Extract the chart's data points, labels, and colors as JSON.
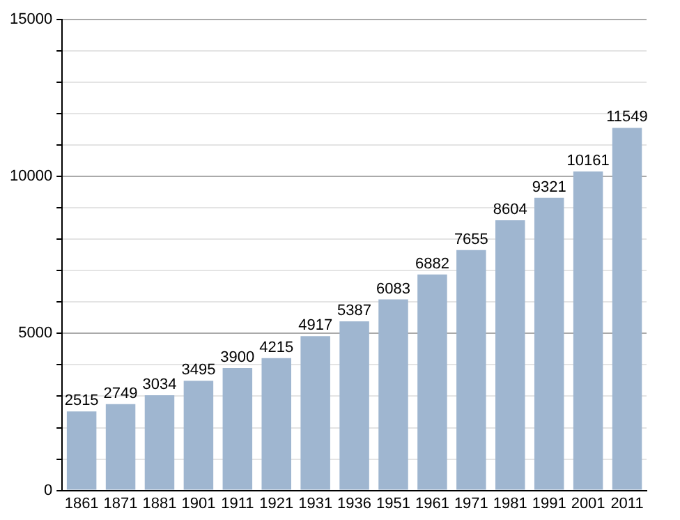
{
  "chart_data": {
    "type": "bar",
    "categories": [
      "1861",
      "1871",
      "1881",
      "1901",
      "1911",
      "1921",
      "1931",
      "1936",
      "1951",
      "1961",
      "1971",
      "1981",
      "1991",
      "2001",
      "2011"
    ],
    "values": [
      2515,
      2749,
      3034,
      3495,
      3900,
      4215,
      4917,
      5387,
      6083,
      6882,
      7655,
      8604,
      9321,
      10161,
      11549
    ],
    "color": "#9fb6d0",
    "ylim": [
      0,
      15000
    ],
    "yticks": [
      0,
      {
        "value": 1000,
        "label": null
      },
      {
        "value": 2000,
        "label": null
      },
      {
        "value": 3000,
        "label": null
      },
      {
        "value": 4000,
        "label": null
      },
      5000,
      {
        "value": 6000,
        "label": null
      },
      {
        "value": 7000,
        "label": null
      },
      {
        "value": 8000,
        "label": null
      },
      {
        "value": 9000,
        "label": null
      },
      10000,
      {
        "value": 11000,
        "label": null
      },
      {
        "value": 12000,
        "label": null
      },
      {
        "value": 13000,
        "label": null
      },
      {
        "value": 14000,
        "label": null
      },
      15000
    ],
    "grid": "y",
    "data_labels": true
  }
}
